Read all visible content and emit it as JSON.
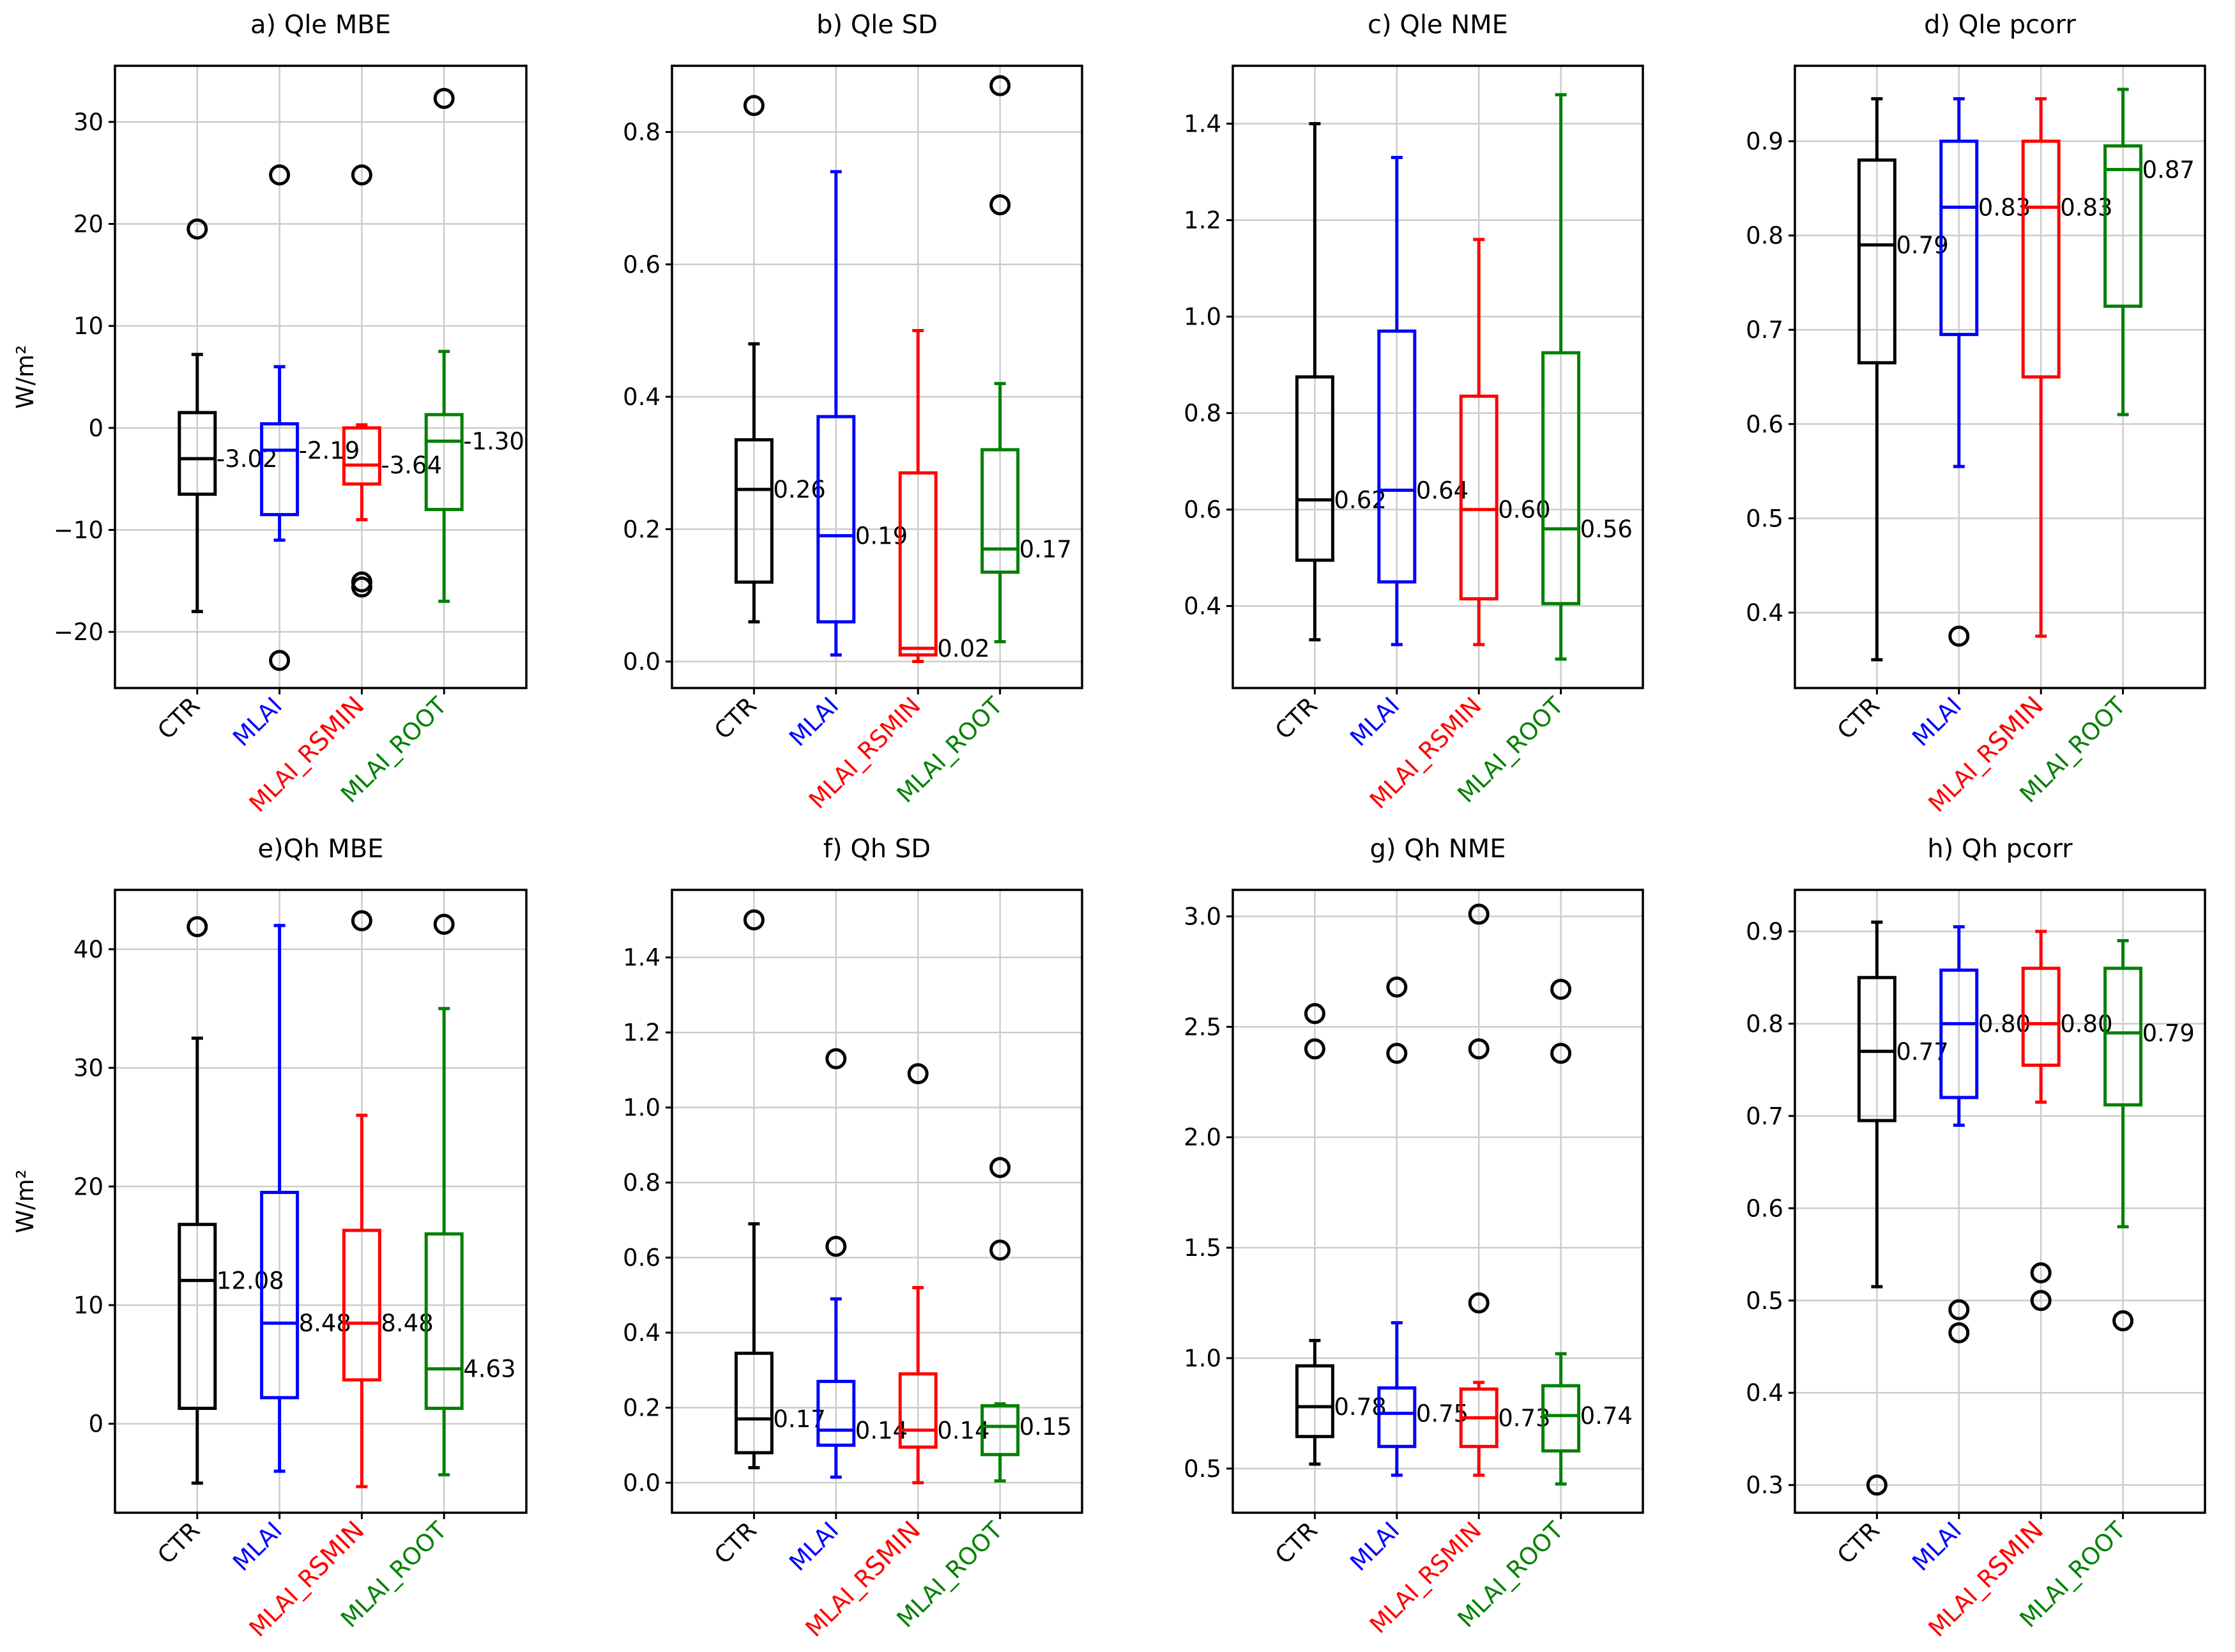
{
  "figure": {
    "background": "#ffffff"
  },
  "colors": {
    "CTR": "#000000",
    "MLAI": "#0000ff",
    "MLAI_RSMIN": "#ff0000",
    "MLAI_ROOT": "#008000",
    "grid": "#cccccc",
    "outlier": "#000000"
  },
  "chart_data": [
    {
      "id": "a",
      "type": "box",
      "title": "a) Qle MBE",
      "ylabel": "W/m²",
      "ylim": [
        -25.5,
        35.5
      ],
      "yticks": [
        -20,
        -10,
        0,
        10,
        20,
        30
      ],
      "ytick_labels": [
        "−20",
        "−10",
        "0",
        "10",
        "20",
        "30"
      ],
      "categories": [
        "CTR",
        "MLAI",
        "MLAI_RSMIN",
        "MLAI_ROOT"
      ],
      "category_label_parts": [
        [
          "CTR"
        ],
        [
          "MLAI"
        ],
        [
          "MLAI_R",
          "SMIN"
        ],
        [
          "MLAI_ROOT"
        ]
      ],
      "series": [
        {
          "name": "CTR",
          "whislo": -18.0,
          "q1": -6.5,
          "median": -3.02,
          "q3": 1.5,
          "whishi": 7.2,
          "fliers": [
            19.5
          ],
          "label": "-3.02"
        },
        {
          "name": "MLAI",
          "whislo": -11.0,
          "q1": -8.5,
          "median": -2.19,
          "q3": 0.4,
          "whishi": 6.0,
          "fliers": [
            24.8,
            -22.8
          ],
          "label": "-2.19"
        },
        {
          "name": "MLAI_RSMIN",
          "whislo": -9.0,
          "q1": -5.5,
          "median": -3.64,
          "q3": 0.0,
          "whishi": 0.3,
          "fliers": [
            24.8,
            -15.1,
            -15.6
          ],
          "label": "-3.64"
        },
        {
          "name": "MLAI_ROOT",
          "whislo": -17.0,
          "q1": -8.0,
          "median": -1.3,
          "q3": 1.3,
          "whishi": 7.5,
          "fliers": [
            32.3
          ],
          "label": "-1.30"
        }
      ]
    },
    {
      "id": "b",
      "type": "box",
      "title": "b) Qle SD",
      "ylabel": "",
      "ylim": [
        -0.04,
        0.9
      ],
      "yticks": [
        0.0,
        0.2,
        0.4,
        0.6,
        0.8
      ],
      "ytick_labels": [
        "0.0",
        "0.2",
        "0.4",
        "0.6",
        "0.8"
      ],
      "categories": [
        "CTR",
        "MLAI",
        "MLAI_RSMIN",
        "MLAI_ROOT"
      ],
      "category_label_parts": [
        [
          "CTR"
        ],
        [
          "MLAI"
        ],
        [
          "MLAI_RSMIN"
        ],
        [
          "MLAI_ROOT"
        ]
      ],
      "series": [
        {
          "name": "CTR",
          "whislo": 0.06,
          "q1": 0.12,
          "median": 0.26,
          "q3": 0.335,
          "whishi": 0.48,
          "fliers": [
            0.84
          ],
          "label": "0.26"
        },
        {
          "name": "MLAI",
          "whislo": 0.01,
          "q1": 0.06,
          "median": 0.19,
          "q3": 0.37,
          "whishi": 0.74,
          "fliers": [],
          "label": "0.19"
        },
        {
          "name": "MLAI_RSMIN",
          "whislo": 0.0,
          "q1": 0.01,
          "median": 0.02,
          "q3": 0.285,
          "whishi": 0.5,
          "fliers": [],
          "label": "0.02"
        },
        {
          "name": "MLAI_ROOT",
          "whislo": 0.03,
          "q1": 0.135,
          "median": 0.17,
          "q3": 0.32,
          "whishi": 0.42,
          "fliers": [
            0.87,
            0.69
          ],
          "label": "0.17"
        }
      ]
    },
    {
      "id": "c",
      "type": "box",
      "title": "c) Qle NME",
      "ylabel": "",
      "ylim": [
        0.23,
        1.52
      ],
      "yticks": [
        0.4,
        0.6,
        0.8,
        1.0,
        1.2,
        1.4
      ],
      "ytick_labels": [
        "0.4",
        "0.6",
        "0.8",
        "1.0",
        "1.2",
        "1.4"
      ],
      "categories": [
        "CTR",
        "MLAI",
        "MLAI_RSMIN",
        "MLAI_ROOT"
      ],
      "category_label_parts": [
        [
          "CTR"
        ],
        [
          "MLAI"
        ],
        [
          "MLAI_RSMIN"
        ],
        [
          "MLAI_ROOT"
        ]
      ],
      "series": [
        {
          "name": "CTR",
          "whislo": 0.33,
          "q1": 0.495,
          "median": 0.62,
          "q3": 0.875,
          "whishi": 1.4,
          "fliers": [],
          "label": "0.62"
        },
        {
          "name": "MLAI",
          "whislo": 0.32,
          "q1": 0.45,
          "median": 0.64,
          "q3": 0.97,
          "whishi": 1.33,
          "fliers": [],
          "label": "0.64"
        },
        {
          "name": "MLAI_RSMIN",
          "whislo": 0.32,
          "q1": 0.415,
          "median": 0.6,
          "q3": 0.835,
          "whishi": 1.16,
          "fliers": [],
          "label": "0.60"
        },
        {
          "name": "MLAI_ROOT",
          "whislo": 0.29,
          "q1": 0.405,
          "median": 0.56,
          "q3": 0.925,
          "whishi": 1.46,
          "fliers": [],
          "label": "0.56"
        }
      ]
    },
    {
      "id": "d",
      "type": "box",
      "title": "d) Qle pcorr",
      "ylabel": "",
      "ylim": [
        0.32,
        0.98
      ],
      "yticks": [
        0.4,
        0.5,
        0.6,
        0.7,
        0.8,
        0.9
      ],
      "ytick_labels": [
        "0.4",
        "0.5",
        "0.6",
        "0.7",
        "0.8",
        "0.9"
      ],
      "categories": [
        "CTR",
        "MLAI",
        "MLAI_RSMIN",
        "MLAI_ROOT"
      ],
      "category_label_parts": [
        [
          "CTR"
        ],
        [
          "MLAI"
        ],
        [
          "MLAI_R",
          "SMIN"
        ],
        [
          "MLAI_ROOT"
        ]
      ],
      "series": [
        {
          "name": "CTR",
          "whislo": 0.35,
          "q1": 0.665,
          "median": 0.79,
          "q3": 0.88,
          "whishi": 0.945,
          "fliers": [],
          "label": "0.79"
        },
        {
          "name": "MLAI",
          "whislo": 0.555,
          "q1": 0.695,
          "median": 0.83,
          "q3": 0.9,
          "whishi": 0.945,
          "fliers": [
            0.375
          ],
          "label": "0.83"
        },
        {
          "name": "MLAI_RSMIN",
          "whislo": 0.375,
          "q1": 0.65,
          "median": 0.83,
          "q3": 0.9,
          "whishi": 0.945,
          "fliers": [],
          "label": "0.83"
        },
        {
          "name": "MLAI_ROOT",
          "whislo": 0.61,
          "q1": 0.725,
          "median": 0.87,
          "q3": 0.895,
          "whishi": 0.955,
          "fliers": [],
          "label": "0.87"
        }
      ]
    },
    {
      "id": "e",
      "type": "box",
      "title": "e)Qh MBE",
      "ylabel": "W/m²",
      "ylim": [
        -7.5,
        45
      ],
      "yticks": [
        0,
        10,
        20,
        30,
        40
      ],
      "ytick_labels": [
        "0",
        "10",
        "20",
        "30",
        "40"
      ],
      "categories": [
        "CTR",
        "MLAI",
        "MLAI_RSMIN",
        "MLAI_ROOT"
      ],
      "category_label_parts": [
        [
          "CTR"
        ],
        [
          "MLAI"
        ],
        [
          "MLAI_R",
          "SMIN"
        ],
        [
          "MLAI_ROOT"
        ]
      ],
      "series": [
        {
          "name": "CTR",
          "whislo": -5.0,
          "q1": 1.3,
          "median": 12.08,
          "q3": 16.8,
          "whishi": 32.5,
          "fliers": [
            41.9
          ],
          "label": "12.08"
        },
        {
          "name": "MLAI",
          "whislo": -4.0,
          "q1": 2.2,
          "median": 8.48,
          "q3": 19.5,
          "whishi": 42.0,
          "fliers": [],
          "label": "8.48"
        },
        {
          "name": "MLAI_RSMIN",
          "whislo": -5.3,
          "q1": 3.7,
          "median": 8.48,
          "q3": 16.3,
          "whishi": 26.0,
          "fliers": [
            42.4
          ],
          "label": "8.48"
        },
        {
          "name": "MLAI_ROOT",
          "whislo": -4.3,
          "q1": 1.3,
          "median": 4.63,
          "q3": 16.0,
          "whishi": 35.0,
          "fliers": [
            42.1
          ],
          "label": "4.63"
        }
      ]
    },
    {
      "id": "f",
      "type": "box",
      "title": "f) Qh SD",
      "ylabel": "",
      "ylim": [
        -0.08,
        1.58
      ],
      "yticks": [
        0.0,
        0.2,
        0.4,
        0.6,
        0.8,
        1.0,
        1.2,
        1.4
      ],
      "ytick_labels": [
        "0.0",
        "0.2",
        "0.4",
        "0.6",
        "0.8",
        "1.0",
        "1.2",
        "1.4"
      ],
      "categories": [
        "CTR",
        "MLAI",
        "MLAI_RSMIN",
        "MLAI_ROOT"
      ],
      "category_label_parts": [
        [
          "CTR"
        ],
        [
          "MLAI"
        ],
        [
          "MLAI_R",
          "SMIN"
        ],
        [
          "MLAI_ROOT"
        ]
      ],
      "series": [
        {
          "name": "CTR",
          "whislo": 0.04,
          "q1": 0.08,
          "median": 0.17,
          "q3": 0.345,
          "whishi": 0.69,
          "fliers": [
            1.5
          ],
          "label": "0.17"
        },
        {
          "name": "MLAI",
          "whislo": 0.015,
          "q1": 0.1,
          "median": 0.14,
          "q3": 0.27,
          "whishi": 0.49,
          "fliers": [
            1.13,
            0.63
          ],
          "label": "0.14"
        },
        {
          "name": "MLAI_RSMIN",
          "whislo": 0.0,
          "q1": 0.095,
          "median": 0.14,
          "q3": 0.29,
          "whishi": 0.52,
          "fliers": [
            1.09
          ],
          "label": "0.14"
        },
        {
          "name": "MLAI_ROOT",
          "whislo": 0.005,
          "q1": 0.075,
          "median": 0.15,
          "q3": 0.205,
          "whishi": 0.21,
          "fliers": [
            0.84,
            0.62
          ],
          "label": "0.15"
        }
      ]
    },
    {
      "id": "g",
      "type": "box",
      "title": "g) Qh NME",
      "ylabel": "",
      "ylim": [
        0.3,
        3.12
      ],
      "yticks": [
        0.5,
        1.0,
        1.5,
        2.0,
        2.5,
        3.0
      ],
      "ytick_labels": [
        "0.5",
        "1.0",
        "1.5",
        "2.0",
        "2.5",
        "3.0"
      ],
      "categories": [
        "CTR",
        "MLAI",
        "MLAI_RSMIN",
        "MLAI_ROOT"
      ],
      "category_label_parts": [
        [
          "CTR"
        ],
        [
          "MLAI"
        ],
        [
          "MLAI_RSMIN"
        ],
        [
          "MLAI_ROOT"
        ]
      ],
      "series": [
        {
          "name": "CTR",
          "whislo": 0.52,
          "q1": 0.645,
          "median": 0.78,
          "q3": 0.965,
          "whishi": 1.08,
          "fliers": [
            2.56,
            2.4
          ],
          "label": "0.78"
        },
        {
          "name": "MLAI",
          "whislo": 0.47,
          "q1": 0.6,
          "median": 0.75,
          "q3": 0.865,
          "whishi": 1.16,
          "fliers": [
            2.68,
            2.38
          ],
          "label": "0.75"
        },
        {
          "name": "MLAI_RSMIN",
          "whislo": 0.47,
          "q1": 0.6,
          "median": 0.73,
          "q3": 0.86,
          "whishi": 0.89,
          "fliers": [
            3.01,
            2.4,
            1.25
          ],
          "label": "0.73"
        },
        {
          "name": "MLAI_ROOT",
          "whislo": 0.43,
          "q1": 0.58,
          "median": 0.74,
          "q3": 0.875,
          "whishi": 1.02,
          "fliers": [
            2.67,
            2.38
          ],
          "label": "0.74"
        }
      ]
    },
    {
      "id": "h",
      "type": "box",
      "title": "h) Qh pcorr",
      "ylabel": "",
      "ylim": [
        0.27,
        0.945
      ],
      "yticks": [
        0.3,
        0.4,
        0.5,
        0.6,
        0.7,
        0.8,
        0.9
      ],
      "ytick_labels": [
        "0.3",
        "0.4",
        "0.5",
        "0.6",
        "0.7",
        "0.8",
        "0.9"
      ],
      "categories": [
        "CTR",
        "MLAI",
        "MLAI_RSMIN",
        "MLAI_ROOT"
      ],
      "category_label_parts": [
        [
          "CTR"
        ],
        [
          "MLAI"
        ],
        [
          "MLAI_R",
          "SMIN"
        ],
        [
          "MLAI_ROOT"
        ]
      ],
      "series": [
        {
          "name": "CTR",
          "whislo": 0.515,
          "q1": 0.695,
          "median": 0.77,
          "q3": 0.85,
          "whishi": 0.91,
          "fliers": [
            0.3
          ],
          "label": "0.77"
        },
        {
          "name": "MLAI",
          "whislo": 0.69,
          "q1": 0.72,
          "median": 0.8,
          "q3": 0.858,
          "whishi": 0.905,
          "fliers": [
            0.49,
            0.465
          ],
          "label": "0.80"
        },
        {
          "name": "MLAI_RSMIN",
          "whislo": 0.715,
          "q1": 0.755,
          "median": 0.8,
          "q3": 0.86,
          "whishi": 0.9,
          "fliers": [
            0.53,
            0.5
          ],
          "label": "0.80"
        },
        {
          "name": "MLAI_ROOT",
          "whislo": 0.58,
          "q1": 0.712,
          "median": 0.79,
          "q3": 0.86,
          "whishi": 0.89,
          "fliers": [
            0.478
          ],
          "label": "0.79"
        }
      ]
    }
  ]
}
